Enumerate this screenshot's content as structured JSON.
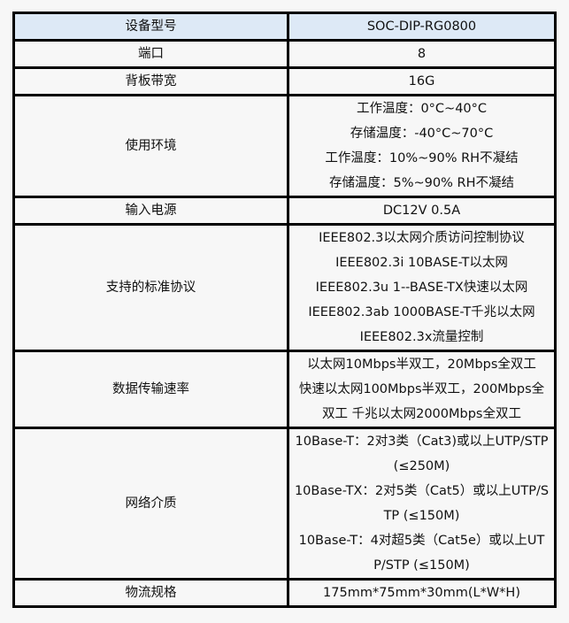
{
  "rows": [
    {
      "label": "设备型号",
      "lines": [
        "SOC-DIP-RG0800"
      ]
    },
    {
      "label": "端口",
      "lines": [
        "8"
      ]
    },
    {
      "label": "背板带宽",
      "lines": [
        "16G"
      ]
    },
    {
      "label": "使用环境",
      "lines": [
        "工作温度：0°C~40°C",
        "存储温度：-40°C~70°C",
        "工作温度：10%~90% RH不凝结",
        "存储温度：5%~90% RH不凝结"
      ]
    },
    {
      "label": "输入电源",
      "lines": [
        "DC12V 0.5A"
      ]
    },
    {
      "label": "支持的标准协议",
      "lines": [
        "IEEE802.3以太网介质访问控制协议",
        "IEEE802.3i 10BASE-T以太网",
        "IEEE802.3u 1--BASE-TX快速以太网",
        "IEEE802.3ab 1000BASE-T千兆以太网",
        "IEEE802.3x流量控制"
      ]
    },
    {
      "label": "数据传输速率",
      "lines": [
        "以太网10Mbps半双工，20Mbps全双工",
        "快速以太网100Mbps半双工，200Mbps全",
        "双工 千兆以太网2000Mbps全双工"
      ]
    },
    {
      "label": "网络介质",
      "lines": [
        "10Base-T：2对3类（Cat3)或以上UTP/STP",
        "(≤250M)",
        "10Base-TX：2对5类（Cat5）或以上UTP/S",
        "TP (≤150M)",
        "10Base-T：4对超5类（Cat5e）或以上UT",
        "P/STP (≤150M)"
      ]
    },
    {
      "label": "物流规格",
      "lines": [
        "175mm*75mm*30mm(L*W*H)"
      ]
    }
  ]
}
